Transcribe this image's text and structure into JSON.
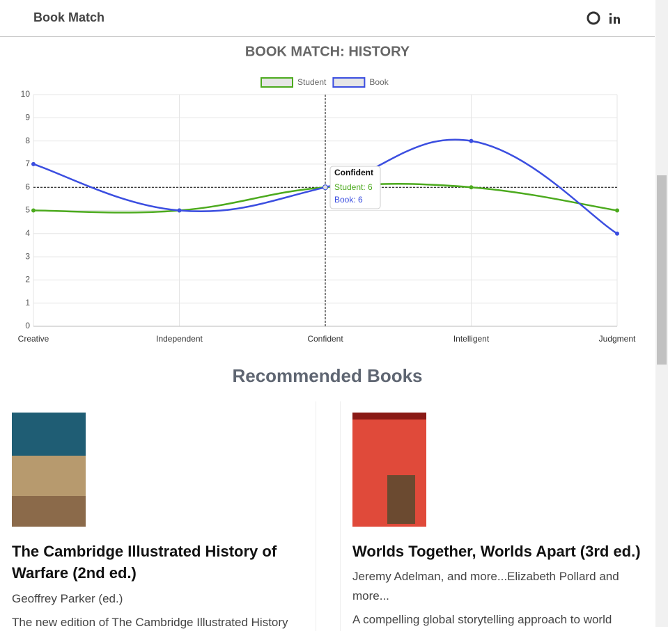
{
  "header": {
    "brand": "Book Match"
  },
  "chart_data": {
    "type": "line",
    "title": "BOOK MATCH: HISTORY",
    "categories": [
      "Creative",
      "Independent",
      "Confident",
      "Intelligent",
      "Judgment"
    ],
    "series": [
      {
        "name": "Student",
        "color": "#4caa1e",
        "values": [
          5,
          5,
          6,
          6,
          5
        ]
      },
      {
        "name": "Book",
        "color": "#3b4ee0",
        "values": [
          7,
          5,
          6,
          8,
          4
        ]
      }
    ],
    "ylim": [
      0,
      10
    ],
    "yticks": [
      0,
      1,
      2,
      3,
      4,
      5,
      6,
      7,
      8,
      9,
      10
    ],
    "grid": true,
    "tooltip": {
      "title": "Confident",
      "lines": [
        "Student: 6",
        "Book: 6"
      ]
    }
  },
  "recommended": {
    "heading": "Recommended Books",
    "books": [
      {
        "title": "The Cambridge Illustrated History of Warfare (2nd ed.)",
        "author": "Geoffrey Parker (ed.)",
        "description": "The new edition of The Cambridge Illustrated History"
      },
      {
        "title": "Worlds Together, Worlds Apart (3rd ed.)",
        "author": "Jeremy Adelman, and more...Elizabeth Pollard and more...",
        "description": "A compelling global storytelling approach to world"
      }
    ]
  }
}
